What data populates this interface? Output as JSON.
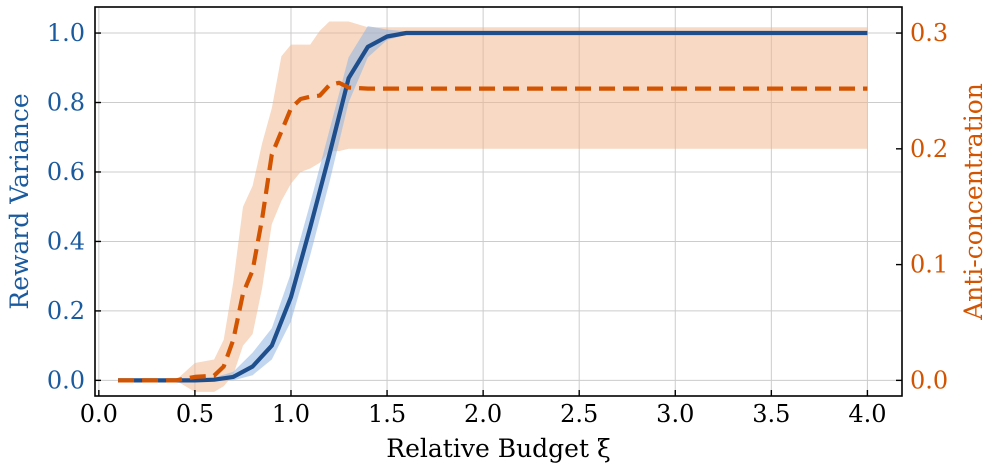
{
  "chart_data": {
    "type": "line",
    "xlabel": "Relative Budget ξ",
    "ylabel_left": "Reward Variance",
    "ylabel_right": "Anti-concentration",
    "xlim": [
      -0.02,
      4.18
    ],
    "ylim_left": [
      -0.045,
      1.075
    ],
    "ylim_right": [
      -0.0135,
      0.3225
    ],
    "grid": true,
    "x_ticks": [
      0.0,
      0.5,
      1.0,
      1.5,
      2.0,
      2.5,
      3.0,
      3.5,
      4.0
    ],
    "x_tick_labels": [
      "0.0",
      "0.5",
      "1.0",
      "1.5",
      "2.0",
      "2.5",
      "3.0",
      "3.5",
      "4.0"
    ],
    "y_left_ticks": [
      0.0,
      0.2,
      0.4,
      0.6,
      0.8,
      1.0
    ],
    "y_left_tick_labels": [
      "0.0",
      "0.2",
      "0.4",
      "0.6",
      "0.8",
      "1.0"
    ],
    "y_right_ticks": [
      0.0,
      0.1,
      0.2,
      0.3
    ],
    "y_right_tick_labels": [
      "0.0",
      "0.1",
      "0.2",
      "0.3"
    ],
    "colors": {
      "left": "#1f4e8c",
      "right": "#d35400",
      "left_label": "#1a5a9e",
      "right_label": "#d35400"
    },
    "series": [
      {
        "axis": "left",
        "style": "solid",
        "x": [
          0.1,
          0.2,
          0.3,
          0.4,
          0.5,
          0.6,
          0.7,
          0.8,
          0.9,
          1.0,
          1.1,
          1.2,
          1.3,
          1.4,
          1.5,
          1.6,
          1.7,
          2.0,
          2.5,
          3.0,
          3.5,
          4.0
        ],
        "y": [
          0.0,
          0.0,
          0.0,
          0.0,
          0.0,
          0.002,
          0.01,
          0.04,
          0.1,
          0.24,
          0.44,
          0.65,
          0.87,
          0.96,
          0.99,
          1.0,
          1.0,
          1.0,
          1.0,
          1.0,
          1.0,
          1.0
        ],
        "lower": [
          0.0,
          0.0,
          0.0,
          0.0,
          0.0,
          0.0,
          0.0,
          0.015,
          0.06,
          0.17,
          0.36,
          0.57,
          0.8,
          0.93,
          0.98,
          0.995,
          1.0,
          1.0,
          1.0,
          1.0,
          1.0,
          1.0
        ],
        "upper": [
          0.0,
          0.0,
          0.0,
          0.0,
          0.003,
          0.008,
          0.025,
          0.08,
          0.15,
          0.31,
          0.51,
          0.72,
          0.93,
          1.02,
          1.01,
          1.005,
          1.0,
          1.0,
          1.0,
          1.0,
          1.0,
          1.0
        ]
      },
      {
        "axis": "right",
        "style": "dashed",
        "x": [
          0.1,
          0.2,
          0.3,
          0.4,
          0.5,
          0.6,
          0.65,
          0.7,
          0.75,
          0.8,
          0.85,
          0.9,
          0.95,
          1.0,
          1.05,
          1.1,
          1.15,
          1.2,
          1.25,
          1.3,
          1.4,
          1.6,
          2.0,
          2.5,
          3.0,
          3.5,
          4.0
        ],
        "y": [
          0.0,
          0.0,
          0.0,
          0.0,
          0.003,
          0.004,
          0.012,
          0.035,
          0.075,
          0.095,
          0.14,
          0.195,
          0.215,
          0.235,
          0.243,
          0.245,
          0.246,
          0.255,
          0.257,
          0.253,
          0.252,
          0.252,
          0.252,
          0.252,
          0.252,
          0.252,
          0.252
        ],
        "lower": [
          0.0,
          0.0,
          0.0,
          0.0,
          -0.01,
          -0.01,
          -0.005,
          0.005,
          0.03,
          0.04,
          0.08,
          0.135,
          0.155,
          0.17,
          0.18,
          0.183,
          0.188,
          0.198,
          0.198,
          0.2,
          0.2,
          0.2,
          0.2,
          0.2,
          0.2,
          0.2,
          0.2
        ],
        "upper": [
          0.0,
          0.0,
          0.0,
          0.0,
          0.015,
          0.018,
          0.035,
          0.085,
          0.15,
          0.168,
          0.205,
          0.235,
          0.28,
          0.29,
          0.29,
          0.29,
          0.302,
          0.31,
          0.31,
          0.31,
          0.305,
          0.305,
          0.305,
          0.305,
          0.305,
          0.305,
          0.305
        ]
      }
    ]
  }
}
